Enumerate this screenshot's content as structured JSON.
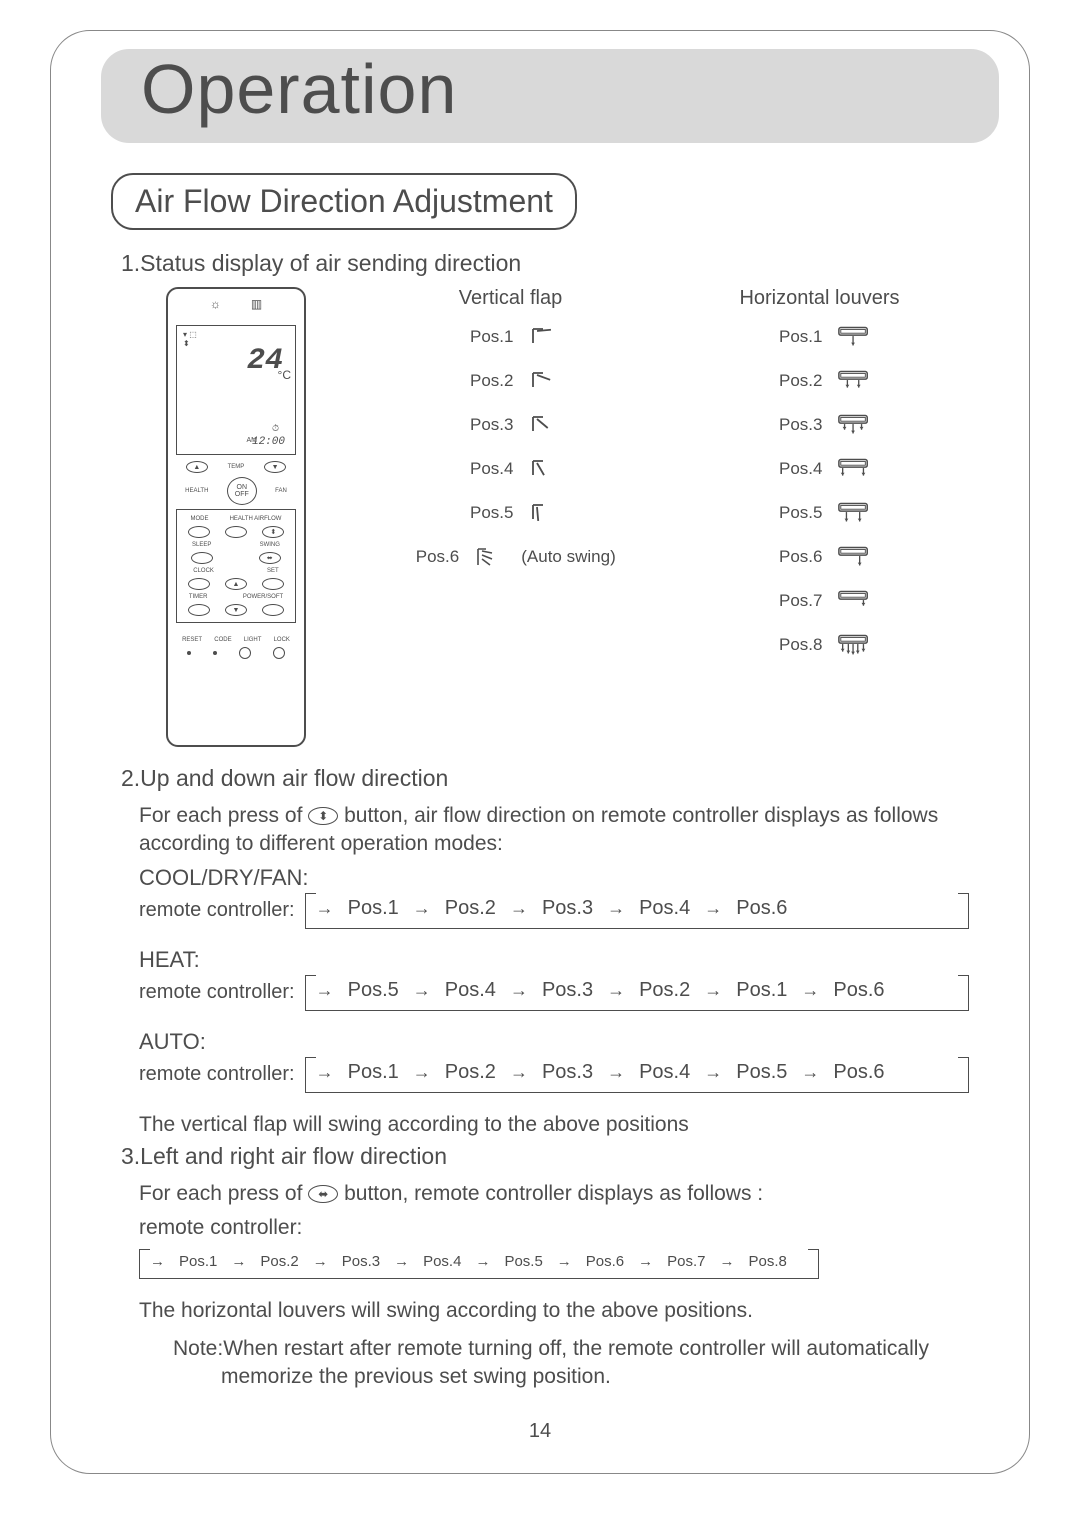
{
  "page": {
    "number": "14"
  },
  "title": "Operation",
  "subtitle": "Air Flow Direction Adjustment",
  "sections": {
    "s1": {
      "heading": "1.Status display of air sending direction",
      "vflap_title": "Vertical flap",
      "hlouv_title": "Horizontal louvers",
      "vflap_positions": [
        "Pos.1",
        "Pos.2",
        "Pos.3",
        "Pos.4",
        "Pos.5",
        "Pos.6"
      ],
      "vflap_autoswing": "(Auto swing)",
      "hlouv_positions": [
        "Pos.1",
        "Pos.2",
        "Pos.3",
        "Pos.4",
        "Pos.5",
        "Pos.6",
        "Pos.7",
        "Pos.8"
      ]
    },
    "s2": {
      "heading": "2.Up and down air flow direction",
      "intro_a": "For each press of ",
      "intro_b": " button, air flow direction on remote controller displays as follows according to different operation modes:",
      "modes": {
        "cool": {
          "label": "COOL/DRY/FAN:",
          "prefix": "remote controller:",
          "seq": [
            "Pos.1",
            "Pos.2",
            "Pos.3",
            "Pos.4",
            "Pos.6"
          ]
        },
        "heat": {
          "label": "HEAT:",
          "prefix": "remote controller:",
          "seq": [
            "Pos.5",
            "Pos.4",
            "Pos.3",
            "Pos.2",
            "Pos.1",
            "Pos.6"
          ]
        },
        "auto": {
          "label": "AUTO:",
          "prefix": "remote controller:",
          "seq": [
            "Pos.1",
            "Pos.2",
            "Pos.3",
            "Pos.4",
            "Pos.5",
            "Pos.6"
          ]
        }
      },
      "tail": "The vertical flap will swing according to the above positions"
    },
    "s3": {
      "heading": "3.Left and right air flow direction",
      "intro_a": "For each press of ",
      "intro_b": " button, remote controller displays as follows :",
      "prefix": "remote controller:",
      "seq": [
        "Pos.1",
        "Pos.2",
        "Pos.3",
        "Pos.4",
        "Pos.5",
        "Pos.6",
        "Pos.7",
        "Pos.8"
      ],
      "tail": "The horizontal louvers will swing according to the above positions."
    },
    "note": "Note:When restart after remote turning off, the remote controller will automatically memorize the previous set swing position."
  },
  "remote": {
    "temp": "24",
    "deg": "°C",
    "clock": "12:00",
    "ampm": "AM",
    "temp_label": "TEMP",
    "on": "ON",
    "off": "OFF",
    "health": "HEALTH",
    "fan": "FAN",
    "mode": "MODE",
    "health_airflow": "HEALTH AIRFLOW",
    "sleep": "SLEEP",
    "swing": "SWING",
    "clock_btn": "CLOCK",
    "set": "SET",
    "timer": "TIMER",
    "powersoft": "POWER/SOFT",
    "reset": "RESET",
    "code": "CODE",
    "light": "LIGHT",
    "lock": "LOCK"
  },
  "colors": {
    "text": "#4d4d4d",
    "banner_bg": "#d9d9d9",
    "page_bg": "#ffffff",
    "border": "#888888"
  }
}
